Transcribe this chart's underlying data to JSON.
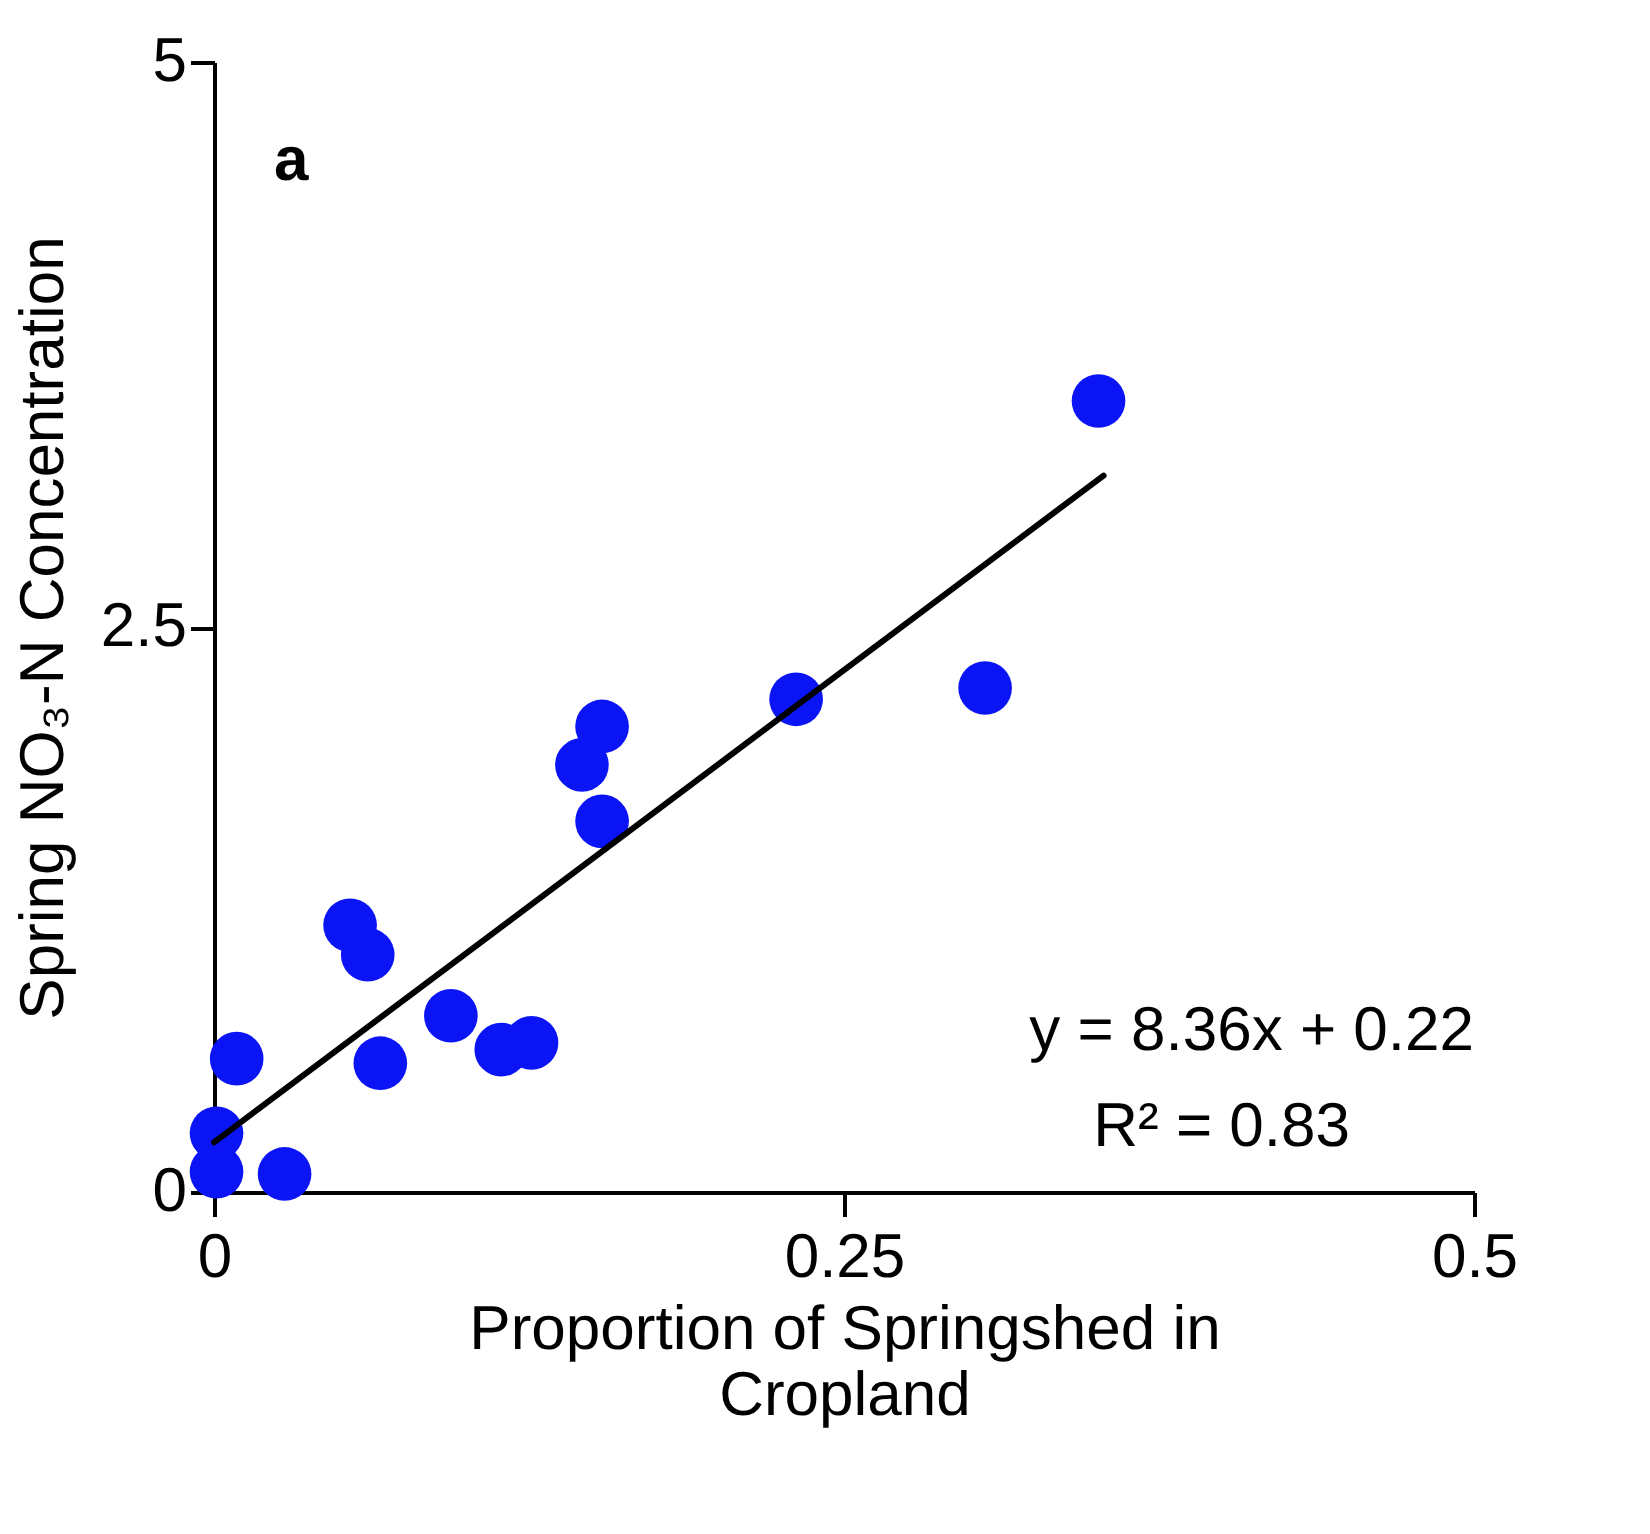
{
  "chart_data": {
    "type": "scatter",
    "xlabel": "Proportion of Springshed in Cropland",
    "ylabel": "Spring NO₃-N Concentration",
    "annotations": [
      "a",
      "y = 8.36x + 0.22",
      "R² = 0.83"
    ],
    "xlim": [
      0,
      0.5
    ],
    "ylim": [
      0,
      5
    ],
    "xticks": [
      0,
      0.25,
      0.5
    ],
    "yticks": [
      0,
      2.5,
      5
    ],
    "grid": false,
    "series": [
      {
        "marker": "circle",
        "color": "#0a14f5",
        "x": [
          0.001,
          0.001,
          0.009,
          0.028,
          0.054,
          0.061,
          0.066,
          0.094,
          0.114,
          0.126,
          0.146,
          0.154,
          0.154,
          0.231,
          0.306,
          0.351
        ],
        "values": [
          0.26,
          0.09,
          0.59,
          0.08,
          1.18,
          1.05,
          0.57,
          0.78,
          0.63,
          0.66,
          1.89,
          2.06,
          1.64,
          2.18,
          2.23,
          3.5
        ]
      },
      {
        "type": "line",
        "color": "#000000",
        "line_style": "solid",
        "x": [
          0,
          0.353
        ],
        "values": [
          0.22,
          3.17
        ]
      }
    ]
  }
}
